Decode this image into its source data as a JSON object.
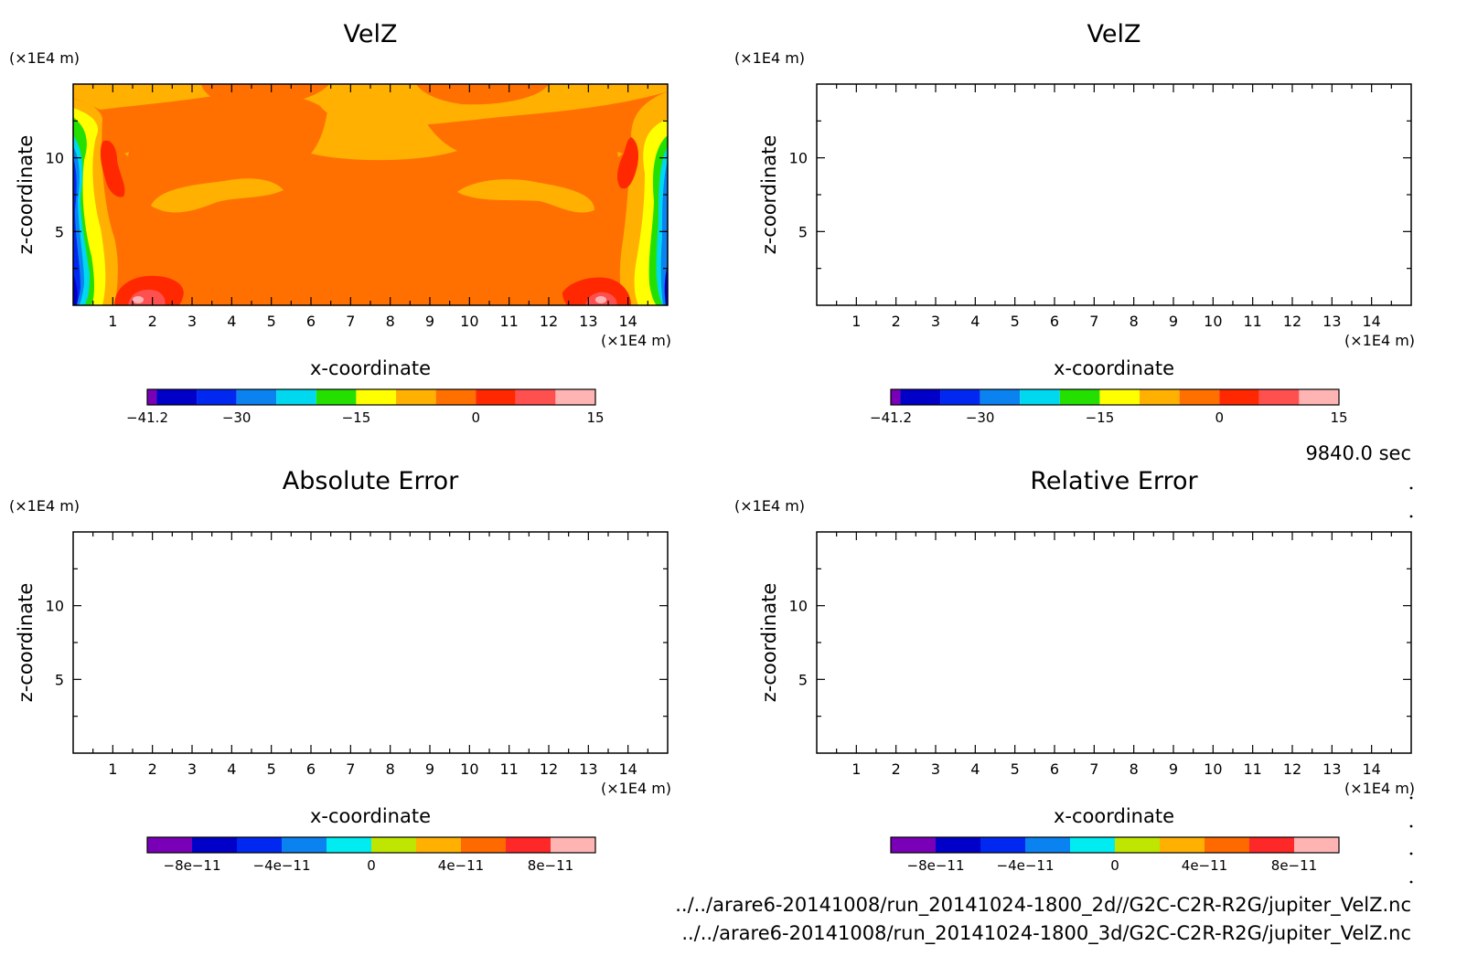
{
  "time_label": "9840.0 sec",
  "file_paths": [
    "../../arare6-20141008/run_20141024-1800_2d//G2C-C2R-R2G/jupiter_VelZ.nc",
    "../../arare6-20141008/run_20141024-1800_3d/G2C-C2R-R2G/jupiter_VelZ.nc"
  ],
  "chart_data": [
    {
      "type": "heatmap",
      "title": "VelZ",
      "xlabel": "x-coordinate",
      "ylabel": "z-coordinate",
      "x_unit": "(×1E4 m)",
      "y_unit": "(×1E4 m)",
      "xlim": [
        0,
        15
      ],
      "ylim": [
        0,
        15
      ],
      "x_ticks": [
        "1",
        "2",
        "3",
        "4",
        "5",
        "6",
        "7",
        "8",
        "9",
        "10",
        "11",
        "12",
        "13",
        "14"
      ],
      "y_ticks": [
        "5",
        "10"
      ],
      "colorbar": {
        "labels": [
          "-41.2",
          "-30",
          "-15",
          "0",
          "15"
        ],
        "label_values": [
          -41.2,
          -30,
          -15,
          0,
          15
        ],
        "range": [
          -41.2,
          15
        ],
        "colors": [
          "#7a00b8",
          "#0000c8",
          "#0028f0",
          "#0a82f0",
          "#00d8f0",
          "#24e000",
          "#ffff00",
          "#ffb000",
          "#ff7000",
          "#ff2800",
          "#ff5050",
          "#ffb4b4"
        ]
      },
      "field": "VelZ at 9840.0 sec (2d run)"
    },
    {
      "type": "heatmap",
      "title": "VelZ",
      "xlabel": "x-coordinate",
      "ylabel": "z-coordinate",
      "x_unit": "(×1E4 m)",
      "y_unit": "(×1E4 m)",
      "xlim": [
        0,
        15
      ],
      "ylim": [
        0,
        15
      ],
      "x_ticks": [
        "1",
        "2",
        "3",
        "4",
        "5",
        "6",
        "7",
        "8",
        "9",
        "10",
        "11",
        "12",
        "13",
        "14"
      ],
      "y_ticks": [
        "5",
        "10"
      ],
      "colorbar": {
        "labels": [
          "-41.2",
          "-30",
          "-15",
          "0",
          "15"
        ],
        "label_values": [
          -41.2,
          -30,
          -15,
          0,
          15
        ],
        "range": [
          -41.2,
          15
        ],
        "colors": [
          "#7a00b8",
          "#0000c8",
          "#0028f0",
          "#0a82f0",
          "#00d8f0",
          "#24e000",
          "#ffff00",
          "#ffb000",
          "#ff7000",
          "#ff2800",
          "#ff5050",
          "#ffb4b4"
        ]
      },
      "field": "VelZ at 9840.0 sec (3d run)"
    },
    {
      "type": "heatmap",
      "title": "Absolute Error",
      "xlabel": "x-coordinate",
      "ylabel": "z-coordinate",
      "x_unit": "(×1E4 m)",
      "y_unit": "(×1E4 m)",
      "xlim": [
        0,
        15
      ],
      "ylim": [
        0,
        15
      ],
      "x_ticks": [
        "1",
        "2",
        "3",
        "4",
        "5",
        "6",
        "7",
        "8",
        "9",
        "10",
        "11",
        "12",
        "13",
        "14"
      ],
      "y_ticks": [
        "5",
        "10"
      ],
      "colorbar": {
        "labels": [
          "-8e-11",
          "-4e-11",
          "0",
          "4e-11",
          "8e-11"
        ],
        "label_values": [
          -8e-11,
          -4e-11,
          0,
          4e-11,
          8e-11
        ],
        "range": [
          -1e-10,
          1e-10
        ],
        "colors": [
          "#7a00b8",
          "#0000c8",
          "#0028f0",
          "#0a82f0",
          "#00ecf0",
          "#bee600",
          "#ffb000",
          "#ff6a00",
          "#ff2828",
          "#ffb4b4"
        ]
      },
      "field": "empty"
    },
    {
      "type": "heatmap",
      "title": "Relative Error",
      "xlabel": "x-coordinate",
      "ylabel": "z-coordinate",
      "x_unit": "(×1E4 m)",
      "y_unit": "(×1E4 m)",
      "xlim": [
        0,
        15
      ],
      "ylim": [
        0,
        15
      ],
      "x_ticks": [
        "1",
        "2",
        "3",
        "4",
        "5",
        "6",
        "7",
        "8",
        "9",
        "10",
        "11",
        "12",
        "13",
        "14"
      ],
      "y_ticks": [
        "5",
        "10"
      ],
      "colorbar": {
        "labels": [
          "-8e-11",
          "-4e-11",
          "0",
          "4e-11",
          "8e-11"
        ],
        "label_values": [
          -8e-11,
          -4e-11,
          0,
          4e-11,
          8e-11
        ],
        "range": [
          -1e-10,
          1e-10
        ],
        "colors": [
          "#7a00b8",
          "#0000c8",
          "#0028f0",
          "#0a82f0",
          "#00ecf0",
          "#bee600",
          "#ffb000",
          "#ff6a00",
          "#ff2828",
          "#ffb4b4"
        ]
      },
      "field": "empty"
    }
  ]
}
